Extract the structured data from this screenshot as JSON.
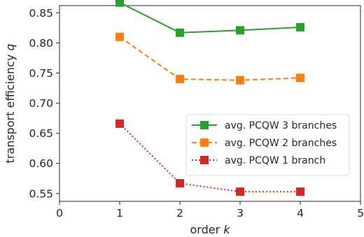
{
  "chart_data": {
    "type": "line",
    "xlabel": "order",
    "xlabel_var": "k",
    "ylabel": "transport efficiency",
    "ylabel_var": "q",
    "xlim": [
      0,
      5
    ],
    "ylim": [
      0.537,
      0.862
    ],
    "xticks": [
      0,
      1,
      2,
      3,
      4,
      5
    ],
    "yticks": [
      0.55,
      0.6,
      0.65,
      0.7,
      0.75,
      0.8,
      0.85
    ],
    "ytick_labels": [
      "0.55",
      "0.60",
      "0.65",
      "0.70",
      "0.75",
      "0.80",
      "0.85"
    ],
    "grid": false,
    "legend_position": "center-right",
    "x": [
      1,
      2,
      3,
      4
    ],
    "series": [
      {
        "name": "avg. PCQW 3 branches",
        "values": [
          0.867,
          0.817,
          0.821,
          0.826
        ],
        "color": "#2ca02c",
        "linestyle": "solid",
        "marker": "square"
      },
      {
        "name": "avg. PCQW 2 branches",
        "values": [
          0.81,
          0.74,
          0.738,
          0.742
        ],
        "color": "#ff7f0e",
        "linestyle": "dashed",
        "marker": "square"
      },
      {
        "name": "avg. PCQW 1 branch",
        "values": [
          0.666,
          0.567,
          0.553,
          0.553
        ],
        "color": "#d62728",
        "linestyle": "dotted",
        "marker": "square"
      }
    ]
  }
}
